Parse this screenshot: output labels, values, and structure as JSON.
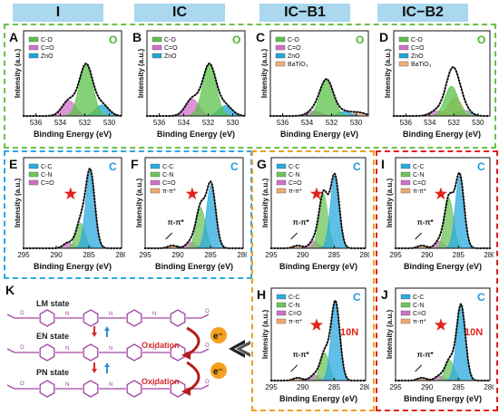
{
  "headers": [
    "I",
    "IC",
    "IC−B1",
    "IC−B2"
  ],
  "colors": {
    "green_box": "#6cc04a",
    "blue_box": "#2ea7e0",
    "orange_box": "#f0a020",
    "red_box": "#e02020",
    "c_o": "#5cc24a",
    "cdo": "#d070c8",
    "zno": "#1ea5d6",
    "batio": "#f3ae7a",
    "cc": "#2ba9df",
    "cn": "#6ec45a",
    "pi": "#f2a96e",
    "env": "#111111"
  },
  "chart_data": [
    {
      "type": "area",
      "panel": "A",
      "element": "O",
      "xlabel": "Binding Energy (eV)",
      "ylabel": "Intensity (a.u.)",
      "xlim": [
        537,
        529
      ],
      "xticks": [
        536,
        534,
        532,
        530
      ],
      "series": [
        {
          "name": "C-O",
          "peak": 531.9,
          "height": 0.6
        },
        {
          "name": "C=O",
          "peak": 533.3,
          "height": 0.18
        },
        {
          "name": "ZnO",
          "peak": 530.6,
          "height": 0.13
        }
      ]
    },
    {
      "type": "area",
      "panel": "B",
      "element": "O",
      "xlabel": "Binding Energy (eV)",
      "ylabel": "Intensity (a.u.)",
      "xlim": [
        537,
        529
      ],
      "xticks": [
        536,
        534,
        532,
        530
      ],
      "series": [
        {
          "name": "C-O",
          "peak": 531.9,
          "height": 0.6
        },
        {
          "name": "C=O",
          "peak": 533.3,
          "height": 0.2
        },
        {
          "name": "ZnO",
          "peak": 530.6,
          "height": 0.12
        }
      ]
    },
    {
      "type": "area",
      "panel": "C",
      "element": "O",
      "xlabel": "Binding Energy (eV)",
      "ylabel": "Intensity (a.u.)",
      "xlim": [
        537,
        529
      ],
      "xticks": [
        536,
        534,
        532,
        530
      ],
      "series": [
        {
          "name": "C-O",
          "peak": 532.4,
          "height": 0.42
        },
        {
          "name": "C=O",
          "peak": 533.4,
          "height": 0.06
        },
        {
          "name": "ZnO",
          "peak": 531.0,
          "height": 0.05
        },
        {
          "name": "BaTiO₃",
          "peak": 529.8,
          "height": 0.04
        }
      ]
    },
    {
      "type": "area",
      "panel": "D",
      "element": "O",
      "xlabel": "Binding Energy (eV)",
      "ylabel": "Intensity (a.u.)",
      "xlim": [
        537,
        529
      ],
      "xticks": [
        536,
        534,
        532,
        530
      ],
      "series": [
        {
          "name": "C-O",
          "peak": 532.2,
          "height": 0.35
        },
        {
          "name": "C=O",
          "peak": 533.4,
          "height": 0.06
        },
        {
          "name": "ZnO",
          "peak": 531.2,
          "height": 0.07
        },
        {
          "name": "BaTiO₃",
          "peak": 531.9,
          "height": 0.22
        }
      ]
    },
    {
      "type": "area",
      "panel": "E",
      "element": "C",
      "xlabel": "Binding Energy (eV)",
      "ylabel": "Intensity (a.u.)",
      "xlim": [
        295,
        280
      ],
      "xticks": [
        295,
        290,
        285,
        280
      ],
      "series": [
        {
          "name": "C-C",
          "peak": 284.8,
          "height": 0.85
        },
        {
          "name": "C-N",
          "peak": 286.3,
          "height": 0.28
        },
        {
          "name": "C=O",
          "peak": 288.2,
          "height": 0.06
        }
      ]
    },
    {
      "type": "area",
      "panel": "F",
      "element": "C",
      "xlabel": "Binding Energy (eV)",
      "ylabel": "Intensity (a.u.)",
      "xlim": [
        295,
        280
      ],
      "xticks": [
        295,
        290,
        285,
        280
      ],
      "annotation": "π-π*",
      "series": [
        {
          "name": "C-C",
          "peak": 284.9,
          "height": 0.7
        },
        {
          "name": "C-N",
          "peak": 286.5,
          "height": 0.45
        },
        {
          "name": "C=O",
          "peak": 288.0,
          "height": 0.07
        },
        {
          "name": "π-π*",
          "peak": 290.8,
          "height": 0.03
        }
      ]
    },
    {
      "type": "area",
      "panel": "G",
      "element": "C",
      "xlabel": "Binding Energy (eV)",
      "ylabel": "Intensity (a.u.)",
      "xlim": [
        295,
        280
      ],
      "xticks": [
        295,
        290,
        285,
        280
      ],
      "annotation": "π-π*",
      "series": [
        {
          "name": "C-C",
          "peak": 284.9,
          "height": 0.8
        },
        {
          "name": "C-N",
          "peak": 286.7,
          "height": 0.6
        },
        {
          "name": "C=O",
          "peak": 288.2,
          "height": 0.08
        },
        {
          "name": "π-π*",
          "peak": 290.8,
          "height": 0.03
        }
      ]
    },
    {
      "type": "area",
      "panel": "H",
      "element": "C",
      "label": "10N",
      "xlabel": "Binding Energy (eV)",
      "ylabel": "Intensity (a.u.)",
      "xlim": [
        295,
        280
      ],
      "xticks": [
        295,
        290,
        285,
        280
      ],
      "annotation": "π-π*",
      "series": [
        {
          "name": "C-C",
          "peak": 284.8,
          "height": 0.85
        },
        {
          "name": "C-N",
          "peak": 286.5,
          "height": 0.3
        },
        {
          "name": "C=O",
          "peak": 288.1,
          "height": 0.06
        },
        {
          "name": "π-π*",
          "peak": 290.8,
          "height": 0.03
        }
      ]
    },
    {
      "type": "area",
      "panel": "I",
      "element": "C",
      "xlabel": "Binding Energy (eV)",
      "ylabel": "Intensity (a.u.)",
      "xlim": [
        295,
        280
      ],
      "xticks": [
        295,
        290,
        285,
        280
      ],
      "annotation": "π-π*",
      "series": [
        {
          "name": "C-C",
          "peak": 284.8,
          "height": 0.8
        },
        {
          "name": "C-N",
          "peak": 286.5,
          "height": 0.55
        },
        {
          "name": "C=O",
          "peak": 288.0,
          "height": 0.08
        },
        {
          "name": "π-π*",
          "peak": 290.8,
          "height": 0.03
        }
      ]
    },
    {
      "type": "area",
      "panel": "J",
      "element": "C",
      "label": "10N",
      "xlabel": "Binding Energy (eV)",
      "ylabel": "Intensity (a.u.)",
      "xlim": [
        295,
        280
      ],
      "xticks": [
        295,
        290,
        285,
        280
      ],
      "annotation": "π-π*",
      "series": [
        {
          "name": "C-C",
          "peak": 284.6,
          "height": 0.82
        },
        {
          "name": "C-N",
          "peak": 286.4,
          "height": 0.22
        },
        {
          "name": "C=O",
          "peak": 288.0,
          "height": 0.05
        },
        {
          "name": "π-π*",
          "peak": 290.8,
          "height": 0.03
        }
      ]
    }
  ],
  "schematic": {
    "panel_label": "K",
    "states": [
      "LM state",
      "EN state",
      "PN state"
    ],
    "process": [
      "Oxidation",
      "Oxidation"
    ],
    "electron": "e⁻"
  }
}
